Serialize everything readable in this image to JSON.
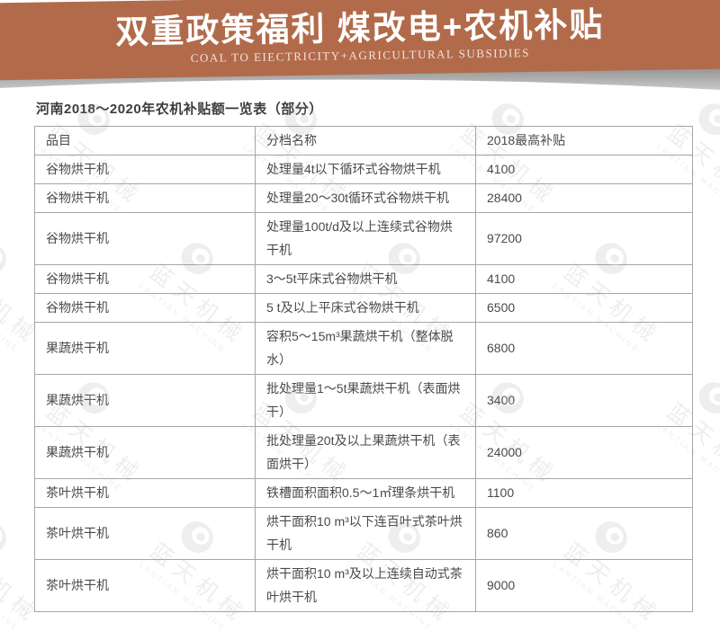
{
  "banner": {
    "title": "双重政策福利  煤改电+农机补贴",
    "subtitle": "COAL TO EIECTRICITY+AGRICULTURAL  SUBSIDIES",
    "bg_color": "#b16b4b"
  },
  "watermark": {
    "text": "蓝天机械",
    "subtext": "LANTIAN MACHINE",
    "color": "#8a8a8a"
  },
  "table": {
    "title": "河南2018～2020年农机补贴额一览表（部分）",
    "columns": [
      "品目",
      "分档名称",
      "2018最高补贴"
    ],
    "rows": [
      [
        "谷物烘干机",
        "处理量4t以下循环式谷物烘干机",
        "4100"
      ],
      [
        "谷物烘干机",
        "处理量20～30t循环式谷物烘干机",
        "28400"
      ],
      [
        "谷物烘干机",
        "处理量100t/d及以上连续式谷物烘干机",
        "97200"
      ],
      [
        "谷物烘干机",
        "3～5t平床式谷物烘干机",
        "4100"
      ],
      [
        "谷物烘干机",
        "5 t及以上平床式谷物烘干机",
        "6500"
      ],
      [
        "果蔬烘干机",
        "容积5～15m³果蔬烘干机（整体脱水）",
        "6800"
      ],
      [
        "果蔬烘干机",
        "批处理量1～5t果蔬烘干机（表面烘干）",
        "3400"
      ],
      [
        "果蔬烘干机",
        "批处理量20t及以上果蔬烘干机（表面烘干）",
        "24000"
      ],
      [
        "茶叶烘干机",
        "铁槽面积面积0.5～1㎡理条烘干机",
        "1100"
      ],
      [
        "茶叶烘干机",
        "烘干面积10 m³以下连百叶式茶叶烘干机",
        "860"
      ],
      [
        "茶叶烘干机",
        "烘干面积10 m³及以上连续自动式茶叶烘干机",
        "9000"
      ]
    ]
  }
}
